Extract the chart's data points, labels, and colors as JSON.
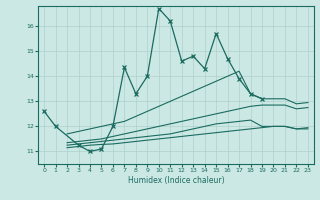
{
  "xlabel": "Humidex (Indice chaleur)",
  "background_color": "#cce8e4",
  "grid_color": "#aed0cc",
  "line_color": "#1a6b60",
  "xlim": [
    -0.5,
    23.5
  ],
  "ylim": [
    10.5,
    16.8
  ],
  "yticks": [
    11,
    12,
    13,
    14,
    15,
    16
  ],
  "xticks": [
    0,
    1,
    2,
    3,
    4,
    5,
    6,
    7,
    8,
    9,
    10,
    11,
    12,
    13,
    14,
    15,
    16,
    17,
    18,
    19,
    20,
    21,
    22,
    23
  ],
  "main_line": {
    "x": [
      0,
      1,
      3,
      4,
      5,
      6,
      7,
      8,
      9,
      10,
      11,
      12,
      13,
      14,
      15,
      16,
      17,
      18,
      19
    ],
    "y": [
      12.6,
      12.0,
      11.25,
      11.0,
      11.1,
      12.0,
      14.35,
      13.3,
      14.0,
      16.7,
      16.2,
      14.6,
      14.8,
      14.3,
      15.7,
      14.7,
      13.9,
      13.3,
      13.1
    ]
  },
  "flat_lines": [
    {
      "x": [
        2,
        3,
        4,
        5,
        6,
        7,
        8,
        9,
        10,
        11,
        12,
        13,
        14,
        15,
        16,
        17,
        18,
        19,
        20,
        21,
        22,
        23
      ],
      "y": [
        11.15,
        11.2,
        11.25,
        11.28,
        11.3,
        11.35,
        11.4,
        11.45,
        11.5,
        11.55,
        11.6,
        11.65,
        11.7,
        11.75,
        11.8,
        11.85,
        11.9,
        11.95,
        12.0,
        12.0,
        11.9,
        11.9
      ]
    },
    {
      "x": [
        2,
        3,
        4,
        5,
        6,
        7,
        8,
        9,
        10,
        11,
        12,
        13,
        14,
        15,
        16,
        17,
        18,
        19,
        20,
        21,
        22,
        23
      ],
      "y": [
        11.25,
        11.3,
        11.35,
        11.4,
        11.45,
        11.5,
        11.55,
        11.6,
        11.65,
        11.7,
        11.8,
        11.9,
        12.0,
        12.1,
        12.15,
        12.2,
        12.25,
        12.0,
        12.0,
        12.0,
        11.9,
        11.95
      ]
    },
    {
      "x": [
        2,
        3,
        4,
        5,
        6,
        7,
        8,
        9,
        10,
        11,
        12,
        13,
        14,
        15,
        16,
        17,
        18,
        19,
        20,
        21,
        22,
        23
      ],
      "y": [
        11.35,
        11.4,
        11.45,
        11.5,
        11.6,
        11.7,
        11.8,
        11.9,
        12.0,
        12.1,
        12.2,
        12.3,
        12.4,
        12.5,
        12.6,
        12.7,
        12.8,
        12.85,
        12.85,
        12.85,
        12.7,
        12.75
      ]
    },
    {
      "x": [
        2,
        3,
        4,
        5,
        6,
        7,
        8,
        9,
        10,
        11,
        12,
        13,
        14,
        15,
        16,
        17,
        18,
        19,
        20,
        21,
        22,
        23
      ],
      "y": [
        11.7,
        11.8,
        11.9,
        12.0,
        12.1,
        12.2,
        12.4,
        12.6,
        12.8,
        13.0,
        13.2,
        13.4,
        13.6,
        13.8,
        14.0,
        14.2,
        13.3,
        13.1,
        13.1,
        13.1,
        12.9,
        12.95
      ]
    }
  ]
}
